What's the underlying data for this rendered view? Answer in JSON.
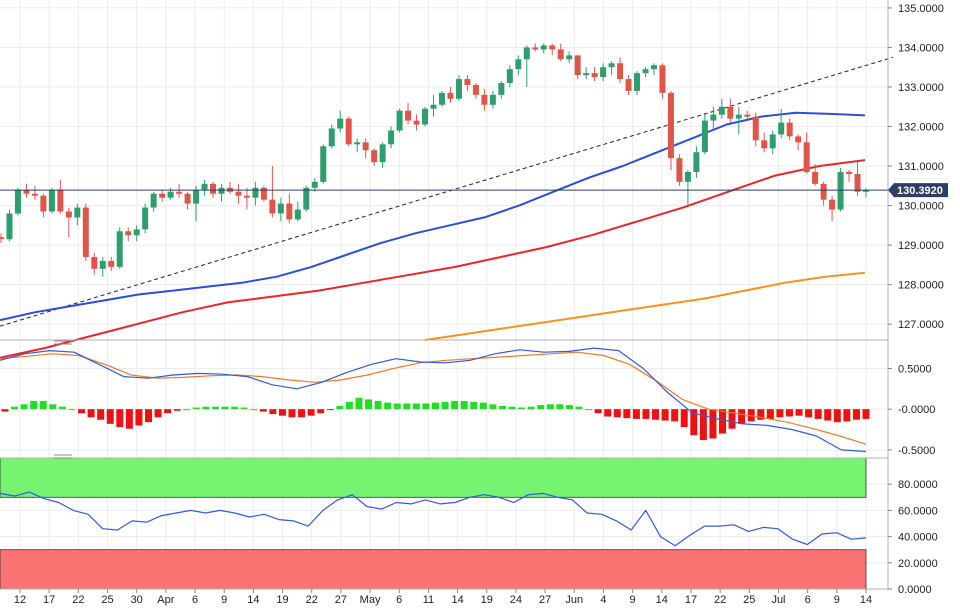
{
  "chart_data": [
    {
      "type": "candlestick",
      "title": "",
      "y_ticks": [
        "135.0000",
        "134.0000",
        "133.0000",
        "132.0000",
        "131.0000",
        "130.0000",
        "129.0000",
        "128.0000",
        "127.0000"
      ],
      "ylim": [
        126.6,
        135.2
      ],
      "current_price": 130.392,
      "current_price_label": "130.3920",
      "x_ticks": [
        "12",
        "17",
        "22",
        "25",
        "30",
        "Apr",
        "6",
        "9",
        "14",
        "19",
        "22",
        "27",
        "May",
        "6",
        "11",
        "14",
        "19",
        "24",
        "27",
        "Jun",
        "4",
        "9",
        "14",
        "17",
        "22",
        "25",
        "Jul",
        "6",
        "9",
        "14"
      ],
      "colors": {
        "up": "#2e9e6e",
        "down": "#e0554a",
        "sma_blue": "#2c4fd6",
        "sma_red": "#e8262b",
        "sma_orange": "#f7931e",
        "trend": "#222222"
      },
      "candles": [
        [
          129.2,
          129.3,
          129.05,
          129.15
        ],
        [
          129.15,
          129.9,
          129.1,
          129.8
        ],
        [
          129.8,
          130.45,
          129.75,
          130.4
        ],
        [
          130.4,
          130.55,
          130.2,
          130.3
        ],
        [
          130.3,
          130.5,
          130.15,
          130.25
        ],
        [
          130.25,
          130.3,
          129.7,
          129.85
        ],
        [
          129.85,
          130.45,
          129.8,
          130.4
        ],
        [
          130.4,
          130.65,
          129.8,
          129.85
        ],
        [
          129.85,
          129.95,
          129.2,
          129.7
        ],
        [
          129.7,
          130.05,
          129.5,
          129.95
        ],
        [
          129.95,
          130.05,
          128.6,
          128.7
        ],
        [
          128.7,
          128.8,
          128.25,
          128.4
        ],
        [
          128.4,
          128.7,
          128.2,
          128.6
        ],
        [
          128.6,
          128.7,
          128.35,
          128.45
        ],
        [
          128.45,
          129.45,
          128.4,
          129.35
        ],
        [
          129.35,
          129.45,
          129.1,
          129.25
        ],
        [
          129.25,
          129.5,
          129.1,
          129.4
        ],
        [
          129.4,
          130.05,
          129.3,
          129.95
        ],
        [
          129.95,
          130.35,
          129.85,
          130.3
        ],
        [
          130.3,
          130.4,
          130.1,
          130.2
        ],
        [
          130.2,
          130.45,
          130.15,
          130.35
        ],
        [
          130.35,
          130.55,
          130.2,
          130.3
        ],
        [
          130.3,
          130.35,
          129.9,
          130.05
        ],
        [
          130.05,
          130.5,
          129.6,
          130.4
        ],
        [
          130.4,
          130.65,
          130.25,
          130.55
        ],
        [
          130.55,
          130.6,
          130.2,
          130.3
        ],
        [
          130.3,
          130.55,
          130.1,
          130.45
        ],
        [
          130.45,
          130.6,
          130.3,
          130.35
        ],
        [
          130.35,
          130.55,
          130.05,
          130.25
        ],
        [
          130.25,
          130.45,
          129.9,
          130.2
        ],
        [
          130.2,
          130.6,
          130.0,
          130.45
        ],
        [
          130.45,
          130.5,
          130.1,
          130.15
        ],
        [
          130.15,
          131.0,
          129.7,
          129.8
        ],
        [
          129.8,
          130.2,
          129.6,
          130.05
        ],
        [
          130.05,
          130.3,
          129.55,
          129.65
        ],
        [
          129.65,
          130.1,
          129.6,
          129.9
        ],
        [
          129.9,
          130.5,
          129.85,
          130.45
        ],
        [
          130.45,
          130.7,
          130.35,
          130.6
        ],
        [
          130.6,
          131.55,
          130.55,
          131.5
        ],
        [
          131.5,
          132.05,
          131.45,
          131.95
        ],
        [
          131.95,
          132.4,
          131.85,
          132.2
        ],
        [
          132.2,
          132.25,
          131.5,
          131.55
        ],
        [
          131.55,
          131.7,
          131.35,
          131.6
        ],
        [
          131.6,
          131.7,
          131.2,
          131.4
        ],
        [
          131.4,
          131.45,
          131.0,
          131.1
        ],
        [
          131.1,
          131.6,
          130.95,
          131.55
        ],
        [
          131.55,
          132.0,
          131.45,
          131.9
        ],
        [
          131.9,
          132.45,
          131.85,
          132.4
        ],
        [
          132.4,
          132.6,
          132.05,
          132.15
        ],
        [
          132.15,
          132.3,
          131.9,
          132.05
        ],
        [
          132.05,
          132.5,
          132.0,
          132.45
        ],
        [
          132.45,
          132.8,
          132.25,
          132.55
        ],
        [
          132.55,
          132.9,
          132.5,
          132.85
        ],
        [
          132.85,
          133.0,
          132.6,
          132.7
        ],
        [
          132.7,
          133.3,
          132.65,
          133.2
        ],
        [
          133.2,
          133.3,
          132.9,
          133.05
        ],
        [
          133.05,
          133.1,
          132.7,
          132.8
        ],
        [
          132.8,
          132.95,
          132.4,
          132.55
        ],
        [
          132.55,
          132.9,
          132.45,
          132.8
        ],
        [
          132.8,
          133.15,
          132.7,
          133.1
        ],
        [
          133.1,
          133.55,
          133.0,
          133.45
        ],
        [
          133.45,
          133.8,
          133.3,
          133.7
        ],
        [
          133.7,
          134.05,
          133.0,
          134.0
        ],
        [
          134.0,
          134.1,
          133.9,
          133.95
        ],
        [
          133.95,
          134.1,
          133.85,
          134.05
        ],
        [
          134.05,
          134.1,
          133.8,
          133.95
        ],
        [
          133.95,
          134.1,
          133.65,
          133.7
        ],
        [
          133.7,
          133.9,
          133.6,
          133.8
        ],
        [
          133.8,
          133.8,
          133.2,
          133.3
        ],
        [
          133.3,
          133.5,
          133.2,
          133.35
        ],
        [
          133.35,
          133.5,
          133.15,
          133.25
        ],
        [
          133.25,
          133.6,
          133.15,
          133.5
        ],
        [
          133.5,
          133.65,
          133.3,
          133.6
        ],
        [
          133.6,
          133.75,
          133.1,
          133.2
        ],
        [
          133.2,
          133.3,
          132.8,
          132.9
        ],
        [
          132.9,
          133.4,
          132.8,
          133.35
        ],
        [
          133.35,
          133.5,
          133.25,
          133.45
        ],
        [
          133.45,
          133.6,
          133.3,
          133.55
        ],
        [
          133.55,
          133.6,
          132.7,
          132.85
        ],
        [
          132.85,
          132.9,
          130.9,
          131.2
        ],
        [
          131.2,
          131.3,
          130.5,
          130.6
        ],
        [
          130.6,
          130.9,
          130.0,
          130.85
        ],
        [
          130.85,
          131.5,
          130.7,
          131.35
        ],
        [
          131.35,
          132.3,
          131.3,
          132.15
        ],
        [
          132.15,
          132.5,
          131.95,
          132.3
        ],
        [
          132.3,
          132.7,
          132.2,
          132.5
        ],
        [
          132.5,
          132.7,
          132.1,
          132.2
        ],
        [
          132.2,
          132.5,
          131.8,
          132.3
        ],
        [
          132.3,
          132.4,
          132.2,
          132.25
        ],
        [
          132.25,
          132.35,
          131.5,
          131.65
        ],
        [
          131.65,
          131.85,
          131.35,
          131.45
        ],
        [
          131.45,
          131.9,
          131.3,
          131.8
        ],
        [
          131.8,
          132.45,
          131.7,
          132.1
        ],
        [
          132.1,
          132.2,
          131.65,
          131.75
        ],
        [
          131.75,
          131.8,
          131.4,
          131.6
        ],
        [
          131.6,
          131.85,
          130.8,
          130.85
        ],
        [
          130.85,
          131.05,
          130.5,
          130.55
        ],
        [
          130.55,
          130.6,
          130.0,
          130.15
        ],
        [
          130.15,
          130.25,
          129.6,
          129.9
        ],
        [
          129.9,
          130.95,
          129.85,
          130.85
        ],
        [
          130.85,
          130.9,
          130.6,
          130.8
        ],
        [
          130.8,
          131.1,
          130.25,
          130.35
        ],
        [
          130.35,
          130.45,
          130.2,
          130.39
        ]
      ],
      "series": [
        {
          "type": "line",
          "values": [
            127.1,
            127.3,
            127.45,
            127.6,
            127.75,
            127.85,
            127.95,
            128.05,
            128.2,
            128.45,
            128.75,
            129.05,
            129.3,
            129.5,
            129.7,
            130.0,
            130.35,
            130.7,
            131.0,
            131.35,
            131.7,
            132.05,
            132.25,
            132.35,
            132.32,
            132.28
          ]
        },
        {
          "type": "line",
          "values": [
            126.15,
            126.4,
            126.7,
            127.0,
            127.3,
            127.55,
            127.7,
            127.85,
            128.05,
            128.25,
            128.45,
            128.7,
            128.95,
            129.25,
            129.6,
            129.95,
            130.35,
            130.75,
            131.0,
            131.15
          ]
        },
        {
          "type": "line",
          "values": [
            126.6,
            126.75,
            126.9,
            127.05,
            127.2,
            127.35,
            127.5,
            127.65,
            127.85,
            128.05,
            128.2,
            128.3
          ]
        },
        {
          "type": "line",
          "name": "",
          "values": [
            126.95,
            133.75
          ]
        }
      ]
    },
    {
      "type": "bar",
      "title": "",
      "y_ticks": [
        "0.5000",
        "-0.0000",
        "-0.5000"
      ],
      "ylim": [
        -0.6,
        0.85
      ],
      "histogram": [
        -0.03,
        0.03,
        0.06,
        0.1,
        0.1,
        0.06,
        0.03,
        0,
        -0.05,
        -0.1,
        -0.13,
        -0.18,
        -0.22,
        -0.24,
        -0.2,
        -0.16,
        -0.1,
        -0.05,
        -0.02,
        0,
        0.02,
        0.03,
        0.03,
        0.03,
        0.03,
        0.02,
        0,
        -0.03,
        -0.06,
        -0.08,
        -0.1,
        -0.1,
        -0.08,
        -0.05,
        -0.01,
        0.04,
        0.09,
        0.14,
        0.12,
        0.1,
        0.08,
        0.07,
        0.07,
        0.07,
        0.07,
        0.08,
        0.09,
        0.1,
        0.1,
        0.09,
        0.08,
        0.06,
        0.04,
        0.03,
        0.02,
        0.03,
        0.05,
        0.06,
        0.06,
        0.05,
        0.03,
        0,
        -0.05,
        -0.09,
        -0.1,
        -0.11,
        -0.12,
        -0.12,
        -0.13,
        -0.14,
        -0.15,
        -0.22,
        -0.32,
        -0.38,
        -0.36,
        -0.3,
        -0.24,
        -0.18,
        -0.15,
        -0.13,
        -0.12,
        -0.1,
        -0.09,
        -0.08,
        -0.1,
        -0.12,
        -0.14,
        -0.16,
        -0.15,
        -0.13,
        -0.12
      ],
      "series": [
        {
          "type": "line",
          "values": [
            0.6,
            0.68,
            0.72,
            0.7,
            0.55,
            0.4,
            0.38,
            0.42,
            0.44,
            0.43,
            0.4,
            0.3,
            0.25,
            0.33,
            0.45,
            0.55,
            0.62,
            0.58,
            0.57,
            0.6,
            0.68,
            0.73,
            0.7,
            0.71,
            0.75,
            0.72,
            0.5,
            0.2,
            -0.05,
            -0.12,
            -0.18,
            -0.2,
            -0.25,
            -0.33,
            -0.5,
            -0.52
          ]
        },
        {
          "type": "line",
          "values": [
            0.62,
            0.65,
            0.68,
            0.66,
            0.55,
            0.42,
            0.38,
            0.39,
            0.41,
            0.42,
            0.4,
            0.36,
            0.33,
            0.36,
            0.42,
            0.5,
            0.57,
            0.6,
            0.62,
            0.64,
            0.66,
            0.68,
            0.7,
            0.66,
            0.55,
            0.35,
            0.12,
            0,
            -0.05,
            -0.1,
            -0.16,
            -0.24,
            -0.33,
            -0.43
          ]
        }
      ]
    },
    {
      "type": "line",
      "title": "",
      "y_ticks": [
        "80.0000",
        "60.0000",
        "40.0000",
        "20.0000",
        "0.0000"
      ],
      "ylim": [
        0,
        100
      ],
      "bands": [
        {
          "from": 70,
          "to": 100,
          "color": "#77f372"
        },
        {
          "from": 0,
          "to": 30,
          "color": "#f97373"
        }
      ],
      "series": [
        {
          "type": "line",
          "values": [
            73,
            71,
            74,
            69,
            66,
            60,
            57,
            46,
            45,
            52,
            51,
            56,
            58,
            60,
            58,
            60,
            58,
            55,
            57,
            53,
            52,
            48,
            60,
            68,
            72,
            63,
            61,
            66,
            65,
            68,
            65,
            66,
            70,
            72,
            70,
            66,
            72,
            73,
            70,
            68,
            58,
            57,
            52,
            45,
            60,
            40,
            33,
            41,
            48,
            48,
            49,
            44,
            47,
            46,
            38,
            34,
            42,
            43,
            38,
            39
          ]
        }
      ]
    }
  ],
  "price_label": "130.3920"
}
